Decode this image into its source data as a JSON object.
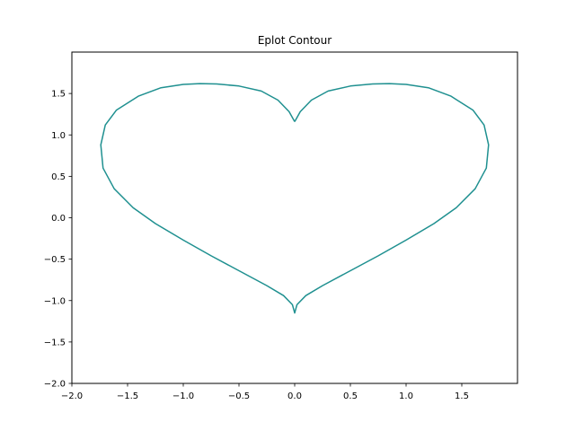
{
  "chart_data": {
    "type": "line",
    "title": "Eplot Contour",
    "xlabel": "",
    "ylabel": "",
    "xlim": [
      -2.0,
      2.0
    ],
    "ylim": [
      -2.0,
      2.0
    ],
    "x_ticks": [
      -2.0,
      -1.5,
      -1.0,
      -0.5,
      0.0,
      0.5,
      1.0,
      1.5
    ],
    "y_ticks": [
      -2.0,
      -1.5,
      -1.0,
      -0.5,
      0.0,
      0.5,
      1.0,
      1.5
    ],
    "x_tick_labels": [
      "−2.0",
      "−1.5",
      "−1.0",
      "−0.5",
      "0.0",
      "0.5",
      "1.0",
      "1.5"
    ],
    "y_tick_labels": [
      "−2.0",
      "−1.5",
      "−1.0",
      "−0.5",
      "0.0",
      "0.5",
      "1.0",
      "1.5"
    ],
    "grid": false,
    "series": [
      {
        "color": "#1f9090",
        "x": [
          0.0,
          0.05,
          0.15,
          0.3,
          0.5,
          0.7,
          0.85,
          1.0,
          1.2,
          1.4,
          1.6,
          1.7,
          1.74,
          1.72,
          1.62,
          1.45,
          1.25,
          1.0,
          0.75,
          0.5,
          0.25,
          0.1,
          0.02,
          0.0,
          -0.02,
          -0.1,
          -0.25,
          -0.5,
          -0.75,
          -1.0,
          -1.25,
          -1.45,
          -1.62,
          -1.72,
          -1.74,
          -1.7,
          -1.6,
          -1.4,
          -1.2,
          -1.0,
          -0.85,
          -0.7,
          -0.5,
          -0.3,
          -0.15,
          -0.05,
          0.0
        ],
        "y": [
          1.16,
          1.28,
          1.42,
          1.53,
          1.59,
          1.615,
          1.62,
          1.61,
          1.57,
          1.47,
          1.3,
          1.12,
          0.88,
          0.6,
          0.35,
          0.12,
          -0.07,
          -0.27,
          -0.46,
          -0.64,
          -0.82,
          -0.94,
          -1.05,
          -1.15,
          -1.05,
          -0.94,
          -0.82,
          -0.64,
          -0.46,
          -0.27,
          -0.07,
          0.12,
          0.35,
          0.6,
          0.88,
          1.12,
          1.3,
          1.47,
          1.57,
          1.61,
          1.62,
          1.615,
          1.59,
          1.53,
          1.42,
          1.28,
          1.16
        ]
      }
    ]
  }
}
